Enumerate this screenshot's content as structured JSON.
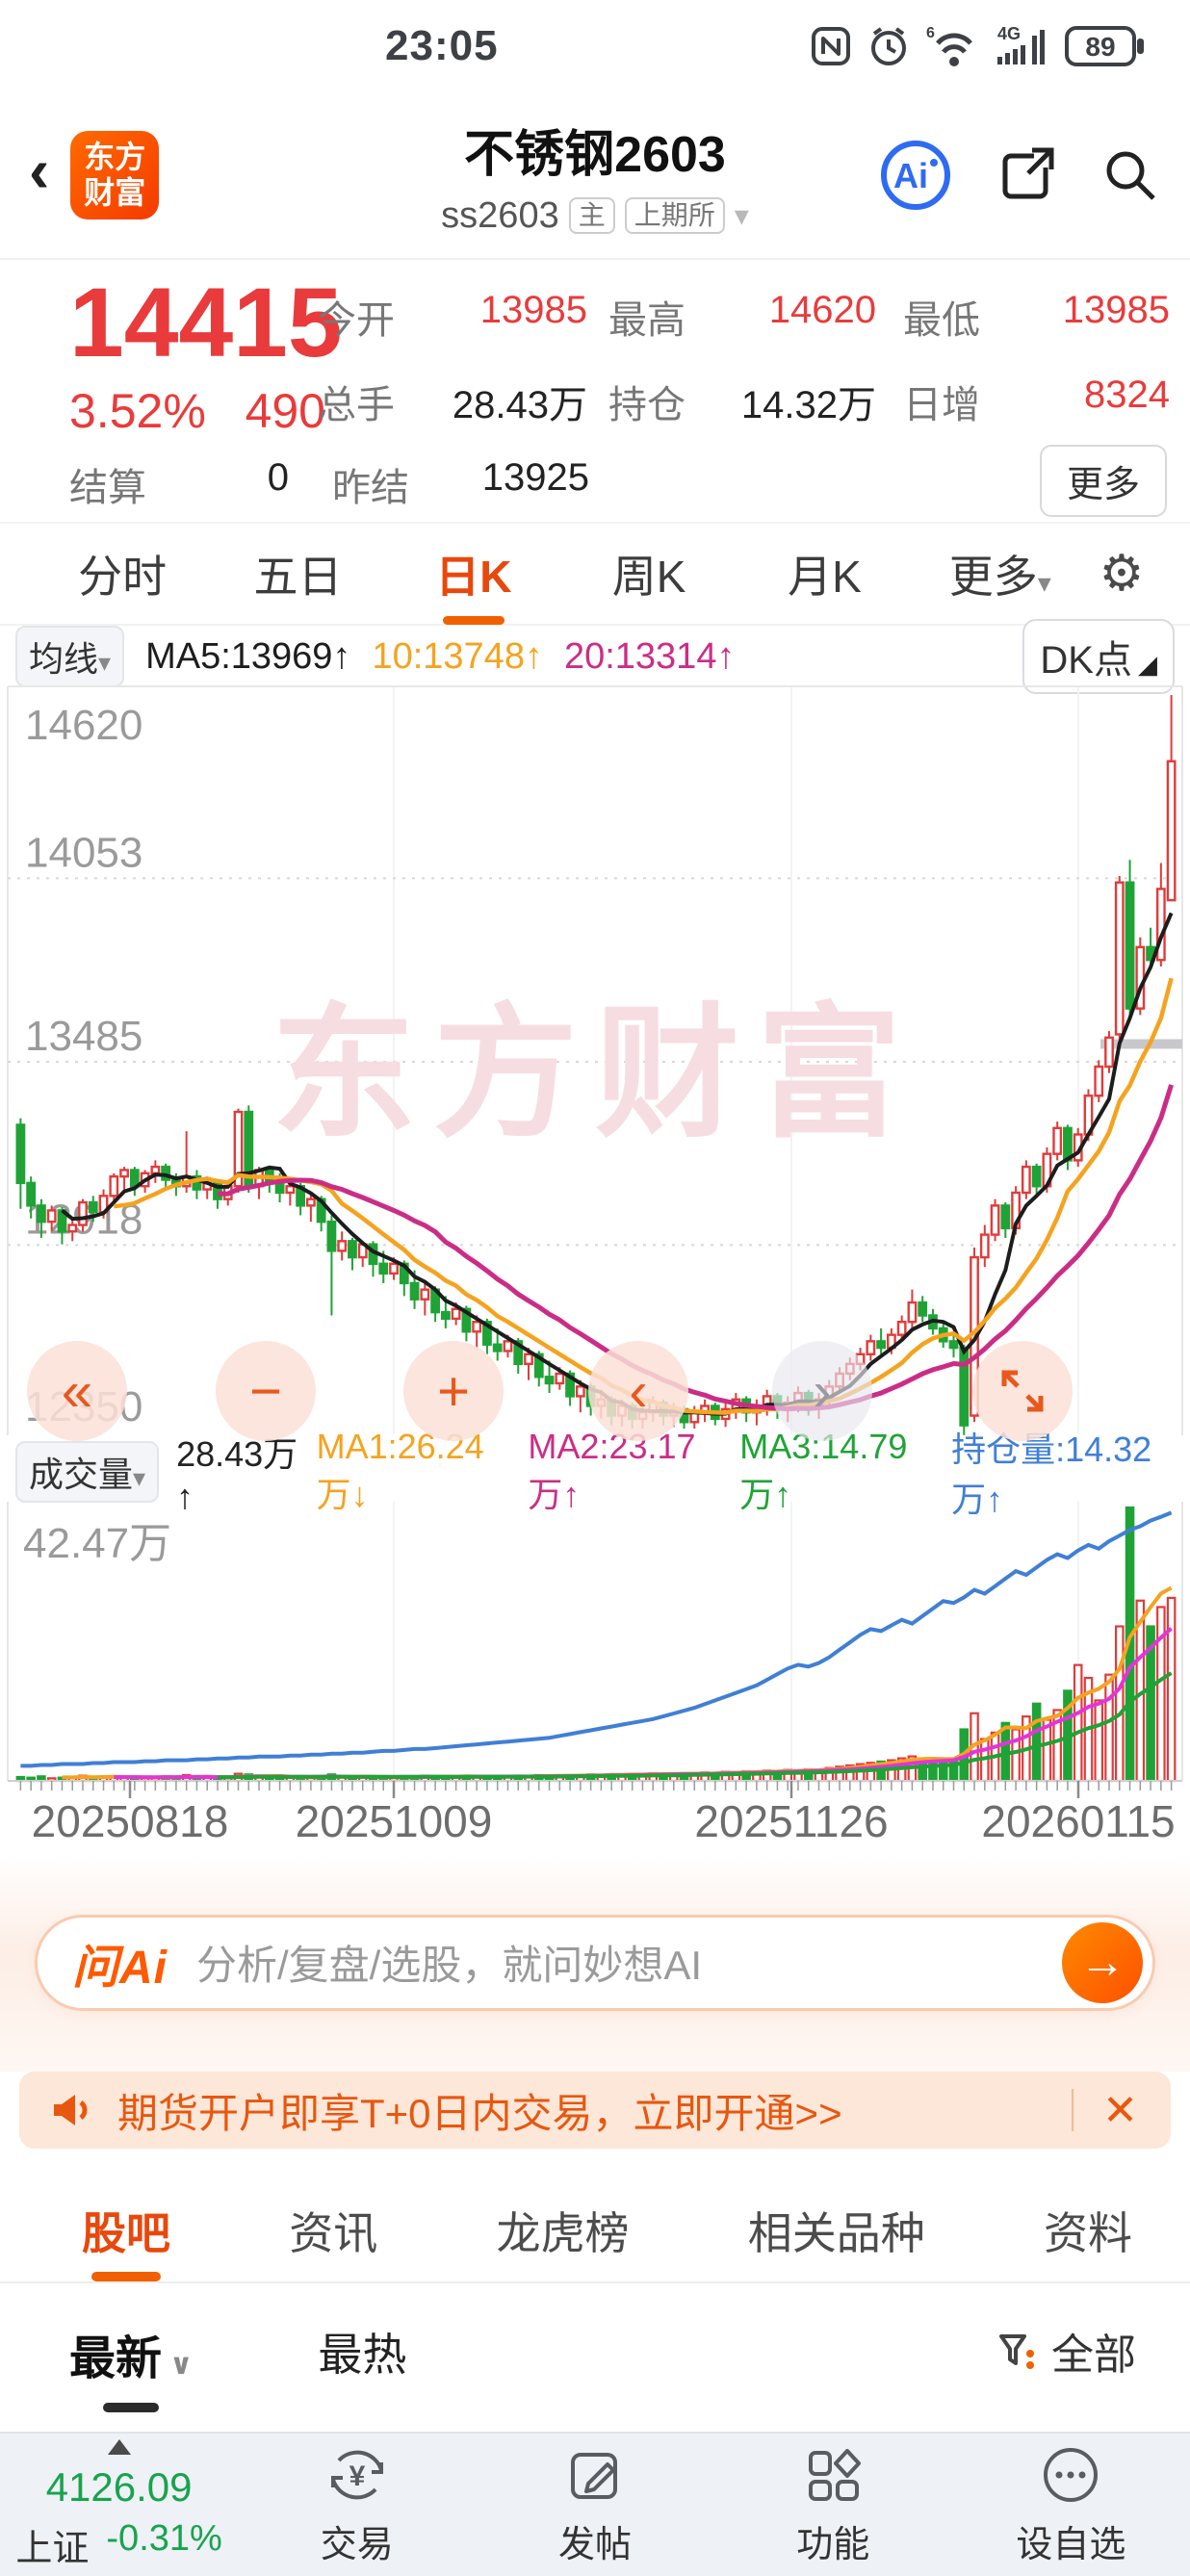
{
  "status_bar": {
    "time": "23:05",
    "battery": "89",
    "network": "4G",
    "wifi_level": "6"
  },
  "header": {
    "back_glyph": "‹",
    "logo_line1": "东方",
    "logo_line2": "财富",
    "title": "不锈钢2603",
    "code": "ss2603",
    "badge_main": "主",
    "badge_exchange": "上期所",
    "caret": "▾",
    "ai_label": "Ai"
  },
  "quote": {
    "price": "14415",
    "change_pct": "3.52%",
    "change_val": "490",
    "fields": [
      {
        "label": "今开",
        "value": "13985"
      },
      {
        "label": "最高",
        "value": "14620"
      },
      {
        "label": "最低",
        "value": "13985"
      },
      {
        "label": "总手",
        "value": "28.43万"
      },
      {
        "label": "持仓",
        "value": "14.32万"
      },
      {
        "label": "日增",
        "value": "8324"
      }
    ],
    "settle_label": "结算",
    "settle_value": "0",
    "prev_settle_label": "昨结",
    "prev_settle_value": "13925",
    "more_label": "更多"
  },
  "period_tabs": [
    {
      "label": "分时"
    },
    {
      "label": "五日"
    },
    {
      "label": "日K"
    },
    {
      "label": "周K"
    },
    {
      "label": "月K"
    },
    {
      "label": "更多"
    }
  ],
  "period_more_caret": "▾",
  "price_header": {
    "ma_button": "均线",
    "ma_caret": "▾",
    "ma5": "MA5:13969↑",
    "ma10": "10:13748↑",
    "ma20": "20:13314↑",
    "dk_button": "DK点",
    "dk_corner": "◢"
  },
  "volume_header": {
    "vol_button": "成交量",
    "vol_caret": "▾",
    "current": "28.43万↑",
    "ma1": "MA1:26.24万↓",
    "ma2": "MA2:23.17万↑",
    "ma3": "MA3:14.79万↑",
    "oi": "持仓量:14.32万↑"
  },
  "chart_data": {
    "type": "candlestick",
    "title": "不锈钢2603 日K",
    "watermark": "东方财富",
    "y_ticks": [
      14620,
      14053,
      13485,
      12918,
      12350
    ],
    "ylim": [
      12350,
      14620
    ],
    "vol_max_label": "42.47万",
    "vol_max": 42.47,
    "oi_max": 14.6,
    "settle_line": {
      "price": 13540,
      "x_from": 1143,
      "x_to": 1228
    },
    "x_labels": [
      {
        "text": "20250818",
        "x": 135
      },
      {
        "text": "20251009",
        "x": 409
      },
      {
        "text": "20251126",
        "x": 822
      },
      {
        "text": "20260115",
        "x": 1120
      }
    ],
    "colors": {
      "up": "#e23a3a",
      "down": "#1fa336",
      "ma5": "#1d1d1d",
      "ma10": "#f5a31f",
      "ma20": "#cb2d86",
      "oi": "#3f7fd6",
      "grid": "#d8d8d8",
      "border": "#e7e7e7",
      "label": "#9a9a9a",
      "watermark": "#f6dde2"
    },
    "candles": [
      [
        13290,
        13310,
        13030,
        13110
      ],
      [
        13110,
        13130,
        13000,
        13040
      ],
      [
        13040,
        13060,
        12940,
        12990
      ],
      [
        12990,
        13040,
        12960,
        13025
      ],
      [
        13025,
        13035,
        12920,
        12960
      ],
      [
        12960,
        13000,
        12930,
        12980
      ],
      [
        12980,
        13060,
        12960,
        13050
      ],
      [
        13050,
        13070,
        12990,
        13020
      ],
      [
        13020,
        13090,
        13000,
        13070
      ],
      [
        13070,
        13140,
        13040,
        13130
      ],
      [
        13130,
        13160,
        13090,
        13150
      ],
      [
        13150,
        13160,
        13070,
        13100
      ],
      [
        13100,
        13150,
        13080,
        13140
      ],
      [
        13140,
        13180,
        13110,
        13160
      ],
      [
        13160,
        13170,
        13090,
        13120
      ],
      [
        13120,
        13140,
        13070,
        13100
      ],
      [
        13100,
        13270,
        13080,
        13130
      ],
      [
        13130,
        13150,
        13060,
        13090
      ],
      [
        13090,
        13130,
        13060,
        13110
      ],
      [
        13110,
        13120,
        13030,
        13060
      ],
      [
        13060,
        13110,
        13040,
        13100
      ],
      [
        13100,
        13340,
        13080,
        13330
      ],
      [
        13330,
        13350,
        13080,
        13100
      ],
      [
        13100,
        13160,
        13060,
        13150
      ],
      [
        13150,
        13160,
        13080,
        13110
      ],
      [
        13110,
        13140,
        13050,
        13080
      ],
      [
        13080,
        13120,
        13040,
        13100
      ],
      [
        13100,
        13110,
        13010,
        13040
      ],
      [
        13040,
        13080,
        12990,
        13060
      ],
      [
        13060,
        13070,
        12960,
        12990
      ],
      [
        12990,
        13010,
        12700,
        12900
      ],
      [
        12900,
        12960,
        12870,
        12930
      ],
      [
        12930,
        12940,
        12840,
        12880
      ],
      [
        12880,
        12930,
        12850,
        12920
      ],
      [
        12920,
        12930,
        12820,
        12860
      ],
      [
        12860,
        12900,
        12800,
        12830
      ],
      [
        12830,
        12880,
        12810,
        12860
      ],
      [
        12860,
        12870,
        12760,
        12800
      ],
      [
        12800,
        12840,
        12720,
        12750
      ],
      [
        12750,
        12800,
        12700,
        12780
      ],
      [
        12780,
        12790,
        12680,
        12710
      ],
      [
        12710,
        12760,
        12660,
        12690
      ],
      [
        12690,
        12740,
        12670,
        12720
      ],
      [
        12720,
        12730,
        12620,
        12650
      ],
      [
        12650,
        12700,
        12600,
        12680
      ],
      [
        12680,
        12690,
        12580,
        12610
      ],
      [
        12610,
        12660,
        12560,
        12590
      ],
      [
        12590,
        12640,
        12570,
        12620
      ],
      [
        12620,
        12630,
        12520,
        12550
      ],
      [
        12550,
        12600,
        12500,
        12580
      ],
      [
        12580,
        12590,
        12480,
        12510
      ],
      [
        12510,
        12560,
        12460,
        12490
      ],
      [
        12490,
        12540,
        12470,
        12520
      ],
      [
        12520,
        12530,
        12420,
        12450
      ],
      [
        12450,
        12500,
        12400,
        12480
      ],
      [
        12480,
        12490,
        12390,
        12420
      ],
      [
        12420,
        12470,
        12380,
        12440
      ],
      [
        12440,
        12450,
        12360,
        12390
      ],
      [
        12390,
        12440,
        12355,
        12420
      ],
      [
        12420,
        12430,
        12350,
        12380
      ],
      [
        12380,
        12420,
        12350,
        12400
      ],
      [
        12400,
        12450,
        12370,
        12430
      ],
      [
        12430,
        12440,
        12360,
        12390
      ],
      [
        12390,
        12430,
        12355,
        12410
      ],
      [
        12410,
        12420,
        12350,
        12370
      ],
      [
        12370,
        12420,
        12350,
        12400
      ],
      [
        12400,
        12440,
        12370,
        12420
      ],
      [
        12420,
        12430,
        12360,
        12380
      ],
      [
        12380,
        12430,
        12355,
        12410
      ],
      [
        12410,
        12460,
        12380,
        12440
      ],
      [
        12440,
        12450,
        12370,
        12400
      ],
      [
        12400,
        12440,
        12360,
        12420
      ],
      [
        12420,
        12470,
        12390,
        12450
      ],
      [
        12450,
        12460,
        12380,
        12410
      ],
      [
        12410,
        12450,
        12370,
        12430
      ],
      [
        12430,
        12480,
        12400,
        12460
      ],
      [
        12460,
        12470,
        12390,
        12420
      ],
      [
        12420,
        12460,
        12380,
        12440
      ],
      [
        12440,
        12500,
        12420,
        12480
      ],
      [
        12480,
        12540,
        12460,
        12520
      ],
      [
        12520,
        12570,
        12500,
        12550
      ],
      [
        12550,
        12600,
        12530,
        12580
      ],
      [
        12580,
        12640,
        12560,
        12620
      ],
      [
        12620,
        12660,
        12580,
        12600
      ],
      [
        12600,
        12660,
        12580,
        12640
      ],
      [
        12640,
        12700,
        12620,
        12680
      ],
      [
        12680,
        12780,
        12660,
        12740
      ],
      [
        12740,
        12760,
        12680,
        12700
      ],
      [
        12700,
        12720,
        12640,
        12660
      ],
      [
        12660,
        12680,
        12600,
        12620
      ],
      [
        12620,
        12650,
        12570,
        12600
      ],
      [
        12600,
        12610,
        12330,
        12360
      ],
      [
        12390,
        12910,
        12370,
        12880
      ],
      [
        12880,
        12980,
        12850,
        12950
      ],
      [
        12950,
        13060,
        12930,
        13040
      ],
      [
        13040,
        13050,
        12940,
        12970
      ],
      [
        12970,
        13100,
        12950,
        13080
      ],
      [
        13080,
        13180,
        13060,
        13160
      ],
      [
        13160,
        13170,
        13070,
        13100
      ],
      [
        13100,
        13220,
        13080,
        13200
      ],
      [
        13200,
        13300,
        13180,
        13280
      ],
      [
        13280,
        13290,
        13150,
        13180
      ],
      [
        13180,
        13280,
        13160,
        13260
      ],
      [
        13260,
        13400,
        13240,
        13380
      ],
      [
        13380,
        13490,
        13360,
        13470
      ],
      [
        13470,
        13580,
        13450,
        13560
      ],
      [
        13570,
        14060,
        13540,
        14040
      ],
      [
        14040,
        14110,
        13620,
        13650
      ],
      [
        13650,
        13870,
        13630,
        13840
      ],
      [
        13840,
        13900,
        13770,
        13800
      ],
      [
        13800,
        14100,
        13780,
        14020
      ],
      [
        13985,
        14620,
        13985,
        14415
      ]
    ],
    "volumes": [
      0.6,
      0.5,
      0.7,
      0.4,
      0.5,
      0.6,
      0.8,
      0.5,
      0.6,
      0.7,
      0.5,
      0.6,
      0.4,
      0.5,
      0.7,
      0.6,
      0.9,
      0.5,
      0.6,
      0.4,
      0.5,
      1.1,
      1.0,
      0.6,
      0.5,
      0.6,
      0.5,
      0.7,
      0.5,
      0.6,
      1.0,
      0.6,
      0.5,
      0.6,
      0.5,
      0.6,
      0.5,
      0.7,
      0.6,
      0.8,
      0.6,
      0.7,
      0.6,
      0.8,
      0.7,
      0.6,
      0.7,
      0.6,
      0.8,
      0.7,
      0.9,
      0.8,
      0.7,
      0.9,
      0.8,
      1.0,
      0.9,
      1.0,
      0.9,
      1.1,
      1.0,
      1.2,
      1.1,
      1.0,
      1.2,
      1.1,
      1.3,
      1.2,
      1.4,
      1.3,
      1.5,
      1.4,
      1.6,
      1.5,
      1.7,
      1.6,
      1.8,
      1.7,
      2.0,
      2.2,
      2.4,
      2.6,
      2.8,
      3.0,
      3.2,
      3.5,
      3.8,
      3.5,
      3.2,
      3.0,
      3.4,
      8.0,
      10.5,
      6.5,
      7.5,
      9.0,
      8.0,
      10.0,
      12.0,
      9.5,
      11.0,
      14.0,
      18.0,
      16.0,
      12.5,
      16.5,
      24.0,
      42.47,
      28.0,
      24.0,
      27.0,
      28.43
    ],
    "open_interest": [
      0.8,
      0.8,
      0.85,
      0.85,
      0.9,
      0.9,
      0.9,
      0.95,
      0.95,
      1.0,
      1.0,
      1.0,
      1.05,
      1.05,
      1.1,
      1.1,
      1.1,
      1.15,
      1.15,
      1.2,
      1.2,
      1.25,
      1.25,
      1.3,
      1.3,
      1.3,
      1.35,
      1.35,
      1.4,
      1.4,
      1.45,
      1.45,
      1.5,
      1.5,
      1.55,
      1.6,
      1.6,
      1.65,
      1.7,
      1.7,
      1.75,
      1.8,
      1.85,
      1.9,
      1.95,
      2.0,
      2.05,
      2.1,
      2.15,
      2.2,
      2.25,
      2.3,
      2.4,
      2.5,
      2.6,
      2.7,
      2.8,
      2.9,
      3.0,
      3.1,
      3.2,
      3.3,
      3.45,
      3.6,
      3.75,
      3.9,
      4.1,
      4.3,
      4.5,
      4.7,
      4.9,
      5.1,
      5.4,
      5.7,
      6.0,
      6.2,
      6.1,
      6.3,
      6.6,
      7.0,
      7.4,
      7.8,
      8.1,
      8.0,
      8.3,
      8.6,
      8.4,
      8.8,
      9.2,
      9.6,
      9.5,
      9.8,
      10.2,
      10.0,
      10.4,
      10.8,
      11.2,
      11.0,
      11.4,
      11.8,
      12.1,
      11.9,
      12.3,
      12.6,
      12.4,
      12.8,
      13.1,
      13.4,
      13.6,
      13.9,
      14.1,
      14.32
    ]
  },
  "chart_controls": {
    "rewind": "«",
    "zoom_out": "−",
    "zoom_in": "+",
    "prev": "‹",
    "next": "›"
  },
  "ai_bar": {
    "brand": "问Ai",
    "placeholder": "分析/复盘/选股，就问妙想AI",
    "go_glyph": "→"
  },
  "promo": {
    "text": "期货开户即享T+0日内交易，立即开通>>",
    "close": "✕"
  },
  "content_tabs": [
    {
      "label": "股吧"
    },
    {
      "label": "资讯"
    },
    {
      "label": "龙虎榜"
    },
    {
      "label": "相关品种"
    },
    {
      "label": "资料"
    }
  ],
  "list_filter": {
    "latest": "最新",
    "latest_caret": "∨",
    "hot": "最热",
    "all": "全部"
  },
  "bottom_nav": {
    "index": {
      "name": "上证",
      "value": "4126.09",
      "pct": "-0.31%"
    },
    "trade": "交易",
    "post": "发帖",
    "features": "功能",
    "watchlist": "设自选"
  }
}
